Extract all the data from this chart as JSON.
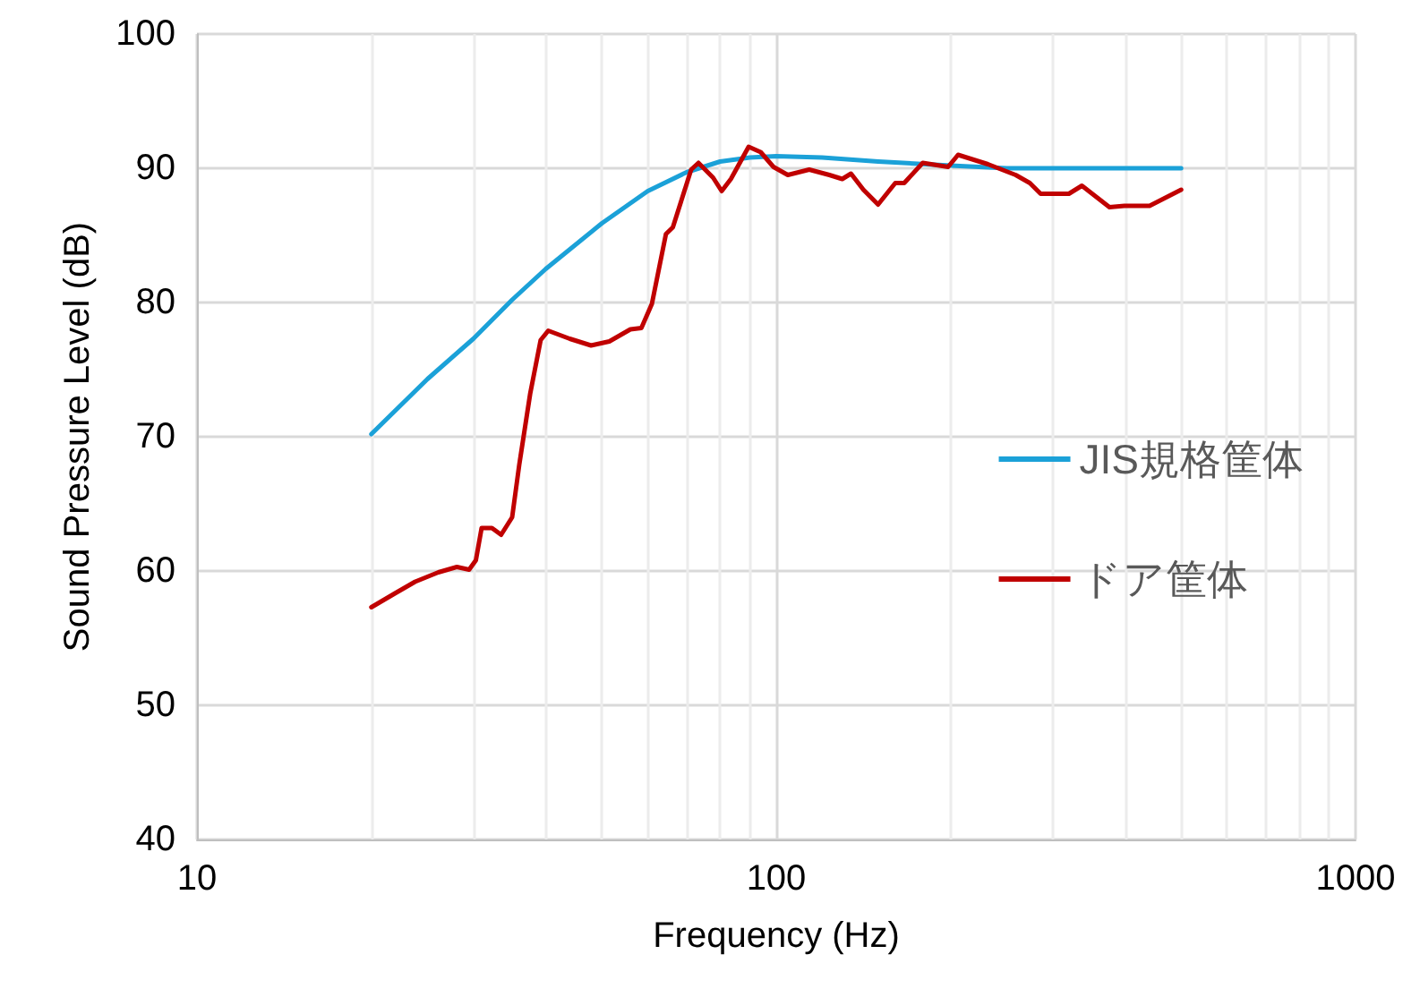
{
  "chart_data": {
    "type": "line",
    "xlabel": "Frequency (Hz)",
    "ylabel": "Sound Pressure Level (dB)",
    "log": "x",
    "grid": true,
    "legend": "right",
    "marker": "none",
    "line_style": "solid",
    "xlim": [
      10,
      1000
    ],
    "xticks": [
      10,
      100,
      1000
    ],
    "ylim": [
      40,
      100
    ],
    "yticks": [
      40,
      50,
      60,
      70,
      80,
      90,
      100
    ],
    "series": [
      {
        "name": "JIS規格筐体",
        "color": "#1ba1d8",
        "x": [
          20,
          25,
          30,
          35,
          40,
          50,
          60,
          70,
          80,
          90,
          100,
          120,
          150,
          200,
          250,
          300,
          400,
          500
        ],
        "values": [
          70.2,
          74.3,
          77.3,
          80.2,
          82.5,
          85.9,
          88.3,
          89.7,
          90.5,
          90.8,
          90.9,
          90.8,
          90.5,
          90.2,
          90.0,
          90.0,
          90.0,
          90.0
        ]
      },
      {
        "name": "ドア筐体",
        "color": "#c00000",
        "x": [
          20,
          21.9,
          23.8,
          26.1,
          28.1,
          29.5,
          30.3,
          31,
          32.3,
          33.5,
          35,
          36,
          37.6,
          39.2,
          40.4,
          44,
          47.9,
          51.5,
          56,
          58.5,
          61,
          64.5,
          66.3,
          71.3,
          73.4,
          77.8,
          80.5,
          83.5,
          89.6,
          94,
          98.9,
          104.7,
          114,
          123.5,
          130,
          134.6,
          141.4,
          149.9,
          160.5,
          166.3,
          179,
          198,
          206,
          232,
          259,
          274,
          286,
          320,
          337,
          376,
          399,
          441,
          500
        ],
        "values": [
          57.3,
          58.3,
          59.2,
          59.9,
          60.3,
          60.1,
          60.8,
          63.2,
          63.2,
          62.7,
          64,
          67.9,
          73.2,
          77.2,
          77.9,
          77.3,
          76.8,
          77.1,
          78,
          78.1,
          79.9,
          85.1,
          85.6,
          89.9,
          90.4,
          89.3,
          88.3,
          89.2,
          91.6,
          91.2,
          90.1,
          89.5,
          89.9,
          89.5,
          89.2,
          89.6,
          88.4,
          87.3,
          88.9,
          88.9,
          90.4,
          90.1,
          91,
          90.3,
          89.5,
          88.9,
          88.1,
          88.1,
          88.7,
          87.1,
          87.2,
          87.2,
          88.4
        ]
      }
    ]
  }
}
